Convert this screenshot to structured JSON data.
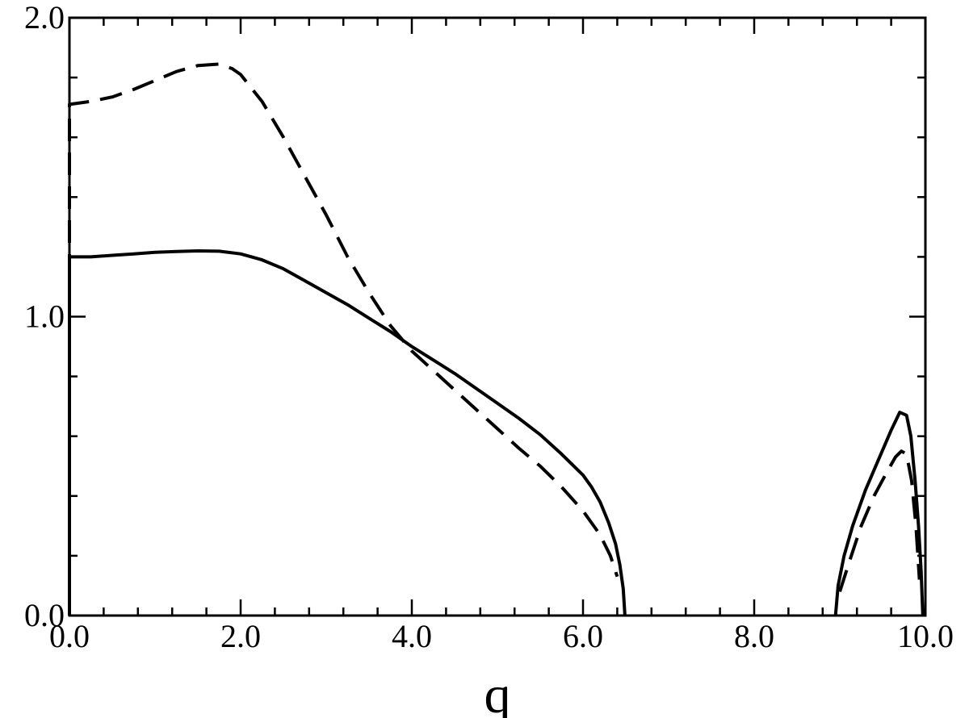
{
  "chart_data": {
    "type": "line",
    "title": "",
    "xlabel": "q",
    "ylabel": "",
    "xlim": [
      0,
      10
    ],
    "ylim": [
      0,
      2
    ],
    "x_ticks": [
      0,
      2,
      4,
      6,
      8,
      10
    ],
    "x_tick_labels": [
      "0.0",
      "2.0",
      "4.0",
      "6.0",
      "8.0",
      "10.0"
    ],
    "y_ticks": [
      0,
      1,
      2
    ],
    "y_tick_labels": [
      "0.0",
      "1.0",
      "2.0"
    ],
    "x_minor_step": 0.4,
    "y_minor_step": 0.2,
    "grid": false,
    "series": [
      {
        "style": "solid",
        "color": "#000000",
        "segments": [
          [
            [
              0.0,
              0.0
            ],
            [
              0.0,
              1.2
            ],
            [
              0.25,
              1.2
            ],
            [
              0.5,
              1.205
            ],
            [
              0.75,
              1.21
            ],
            [
              1.0,
              1.215
            ],
            [
              1.25,
              1.218
            ],
            [
              1.5,
              1.22
            ],
            [
              1.75,
              1.219
            ],
            [
              2.0,
              1.21
            ],
            [
              2.25,
              1.19
            ],
            [
              2.5,
              1.16
            ],
            [
              2.75,
              1.12
            ],
            [
              3.0,
              1.08
            ],
            [
              3.25,
              1.04
            ],
            [
              3.5,
              0.995
            ],
            [
              3.75,
              0.95
            ],
            [
              4.0,
              0.9
            ],
            [
              4.25,
              0.855
            ],
            [
              4.5,
              0.81
            ],
            [
              4.75,
              0.76
            ],
            [
              5.0,
              0.71
            ],
            [
              5.25,
              0.66
            ],
            [
              5.5,
              0.605
            ],
            [
              5.75,
              0.54
            ],
            [
              6.0,
              0.47
            ],
            [
              6.1,
              0.43
            ],
            [
              6.2,
              0.38
            ],
            [
              6.3,
              0.31
            ],
            [
              6.38,
              0.24
            ],
            [
              6.43,
              0.17
            ],
            [
              6.47,
              0.09
            ],
            [
              6.49,
              0.0
            ]
          ],
          [
            [
              8.95,
              0.0
            ],
            [
              8.98,
              0.1
            ],
            [
              9.05,
              0.2
            ],
            [
              9.15,
              0.3
            ],
            [
              9.3,
              0.42
            ],
            [
              9.45,
              0.52
            ],
            [
              9.6,
              0.62
            ],
            [
              9.7,
              0.68
            ],
            [
              9.78,
              0.67
            ],
            [
              9.83,
              0.6
            ],
            [
              9.88,
              0.45
            ],
            [
              9.92,
              0.3
            ],
            [
              9.95,
              0.15
            ],
            [
              9.97,
              0.0
            ]
          ]
        ]
      },
      {
        "style": "dashed",
        "color": "#000000",
        "segments": [
          [
            [
              0.0,
              0.0
            ],
            [
              0.0,
              1.71
            ],
            [
              0.25,
              1.72
            ],
            [
              0.5,
              1.735
            ],
            [
              0.75,
              1.76
            ],
            [
              1.0,
              1.79
            ],
            [
              1.25,
              1.82
            ],
            [
              1.5,
              1.84
            ],
            [
              1.75,
              1.845
            ],
            [
              1.9,
              1.83
            ],
            [
              2.0,
              1.81
            ],
            [
              2.25,
              1.72
            ],
            [
              2.5,
              1.6
            ],
            [
              2.75,
              1.47
            ],
            [
              3.0,
              1.34
            ],
            [
              3.25,
              1.2
            ],
            [
              3.5,
              1.08
            ],
            [
              3.75,
              0.97
            ],
            [
              4.0,
              0.885
            ],
            [
              4.25,
              0.82
            ],
            [
              4.5,
              0.755
            ],
            [
              4.75,
              0.69
            ],
            [
              5.0,
              0.625
            ],
            [
              5.25,
              0.56
            ],
            [
              5.5,
              0.5
            ],
            [
              5.75,
              0.43
            ],
            [
              6.0,
              0.35
            ],
            [
              6.2,
              0.27
            ],
            [
              6.32,
              0.2
            ],
            [
              6.4,
              0.13
            ]
          ],
          [
            [
              9.0,
              0.08
            ],
            [
              9.1,
              0.17
            ],
            [
              9.25,
              0.3
            ],
            [
              9.4,
              0.4
            ],
            [
              9.55,
              0.48
            ],
            [
              9.65,
              0.53
            ],
            [
              9.72,
              0.55
            ],
            [
              9.78,
              0.54
            ],
            [
              9.84,
              0.45
            ],
            [
              9.89,
              0.3
            ],
            [
              9.93,
              0.12
            ]
          ]
        ]
      }
    ]
  }
}
